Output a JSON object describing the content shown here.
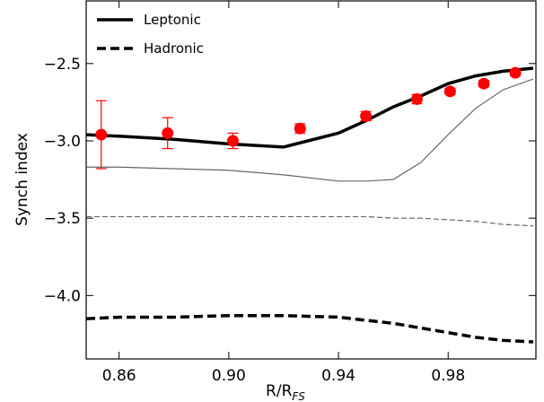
{
  "chart_data": {
    "type": "line",
    "xlabel": "R/R",
    "xlabel_subscript": "FS",
    "ylabel": "Synch index",
    "xlim": [
      0.848,
      1.012
    ],
    "ylim": [
      -4.41,
      -2.095
    ],
    "xticks": [
      0.86,
      {
        "value": 0.9,
        "label": "0.90"
      },
      0.94,
      0.98
    ],
    "yticks": [
      {
        "value": -2.5,
        "label": "−2.5"
      },
      {
        "value": -3.0,
        "label": "−3.0"
      },
      {
        "value": -3.5,
        "label": "−3.5"
      },
      {
        "value": -4.0,
        "label": "−4.0"
      }
    ],
    "legend": "upper-left",
    "x": [
      0.848,
      0.86,
      0.88,
      0.9,
      0.92,
      0.94,
      0.95,
      0.96,
      0.97,
      0.98,
      0.99,
      1.0,
      1.011
    ],
    "series": [
      {
        "name": "Leptonic",
        "color": "#000000",
        "linestyle": "solid",
        "linewidth": "thick",
        "values": [
          -2.96,
          -2.97,
          -2.99,
          -3.02,
          -3.04,
          -2.95,
          -2.87,
          -2.78,
          -2.71,
          -2.63,
          -2.58,
          -2.55,
          -2.53
        ]
      },
      {
        "name": "Hadronic",
        "color": "#000000",
        "linestyle": "dashed",
        "linewidth": "thick",
        "values": [
          -4.15,
          -4.14,
          -4.14,
          -4.13,
          -4.13,
          -4.14,
          -4.16,
          -4.18,
          -4.21,
          -4.24,
          -4.27,
          -4.29,
          -4.3
        ]
      },
      {
        "color": "#666666",
        "linestyle": "solid",
        "linewidth": "thin",
        "values": [
          -3.17,
          -3.17,
          -3.18,
          -3.19,
          -3.22,
          -3.26,
          -3.26,
          -3.25,
          -3.14,
          -2.96,
          -2.79,
          -2.67,
          -2.6
        ]
      },
      {
        "color": "#666666",
        "linestyle": "dashed",
        "linewidth": "thin",
        "values": [
          -3.49,
          -3.49,
          -3.49,
          -3.49,
          -3.49,
          -3.49,
          -3.49,
          -3.5,
          -3.5,
          -3.51,
          -3.52,
          -3.54,
          -3.55
        ]
      }
    ],
    "points": {
      "color": "#ff0000",
      "x": [
        0.8535,
        0.8777,
        0.9015,
        0.926,
        0.95,
        0.9686,
        0.9807,
        0.993,
        1.0045
      ],
      "values": [
        -2.96,
        -2.95,
        -3.0,
        -2.92,
        -2.84,
        -2.73,
        -2.68,
        -2.63,
        -2.56
      ],
      "errors": [
        0.22,
        0.1,
        0.05,
        0.03,
        0.03,
        0.03,
        0.02,
        0.02,
        0.02
      ]
    }
  }
}
